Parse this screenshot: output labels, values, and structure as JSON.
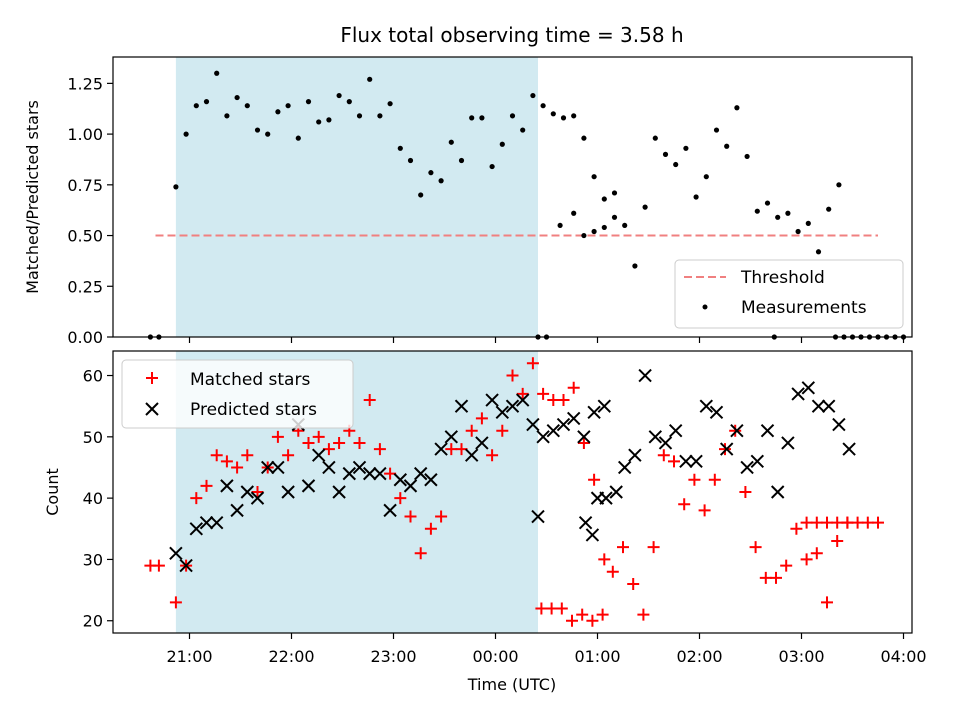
{
  "figure_title": "Flux total observing time = 3.58 h",
  "shaded_region": {
    "start": "20:52",
    "end": "00:25",
    "color": "#add8e6"
  },
  "x_axis": {
    "label": "Time (UTC)",
    "range": [
      "20:15",
      "04:05"
    ],
    "tick_labels": [
      "21:00",
      "22:00",
      "23:00",
      "00:00",
      "01:00",
      "02:00",
      "03:00",
      "04:00"
    ]
  },
  "chart_data": [
    {
      "type": "scatter",
      "ylabel": "Matched/Predicted stars",
      "ylim": [
        0,
        1.38
      ],
      "yticks": [
        "0.00",
        "0.25",
        "0.50",
        "0.75",
        "1.00",
        "1.25"
      ],
      "legend_position": "lower right",
      "threshold": {
        "name": "Threshold",
        "value": 0.5,
        "x_range": [
          "20:40",
          "03:45"
        ],
        "color": "#f08080",
        "style": "dashed"
      },
      "series": [
        {
          "name": "Measurements",
          "color": "#000000",
          "marker": "dot",
          "points": [
            [
              "20:37",
              0
            ],
            [
              "20:42",
              0
            ],
            [
              "20:52",
              0.74
            ],
            [
              "20:58",
              1.0
            ],
            [
              "21:04",
              1.14
            ],
            [
              "21:10",
              1.16
            ],
            [
              "21:16",
              1.3
            ],
            [
              "21:22",
              1.09
            ],
            [
              "21:28",
              1.18
            ],
            [
              "21:34",
              1.14
            ],
            [
              "21:40",
              1.02
            ],
            [
              "21:46",
              1.0
            ],
            [
              "21:52",
              1.11
            ],
            [
              "21:58",
              1.14
            ],
            [
              "22:04",
              0.98
            ],
            [
              "22:10",
              1.16
            ],
            [
              "22:16",
              1.06
            ],
            [
              "22:22",
              1.07
            ],
            [
              "22:28",
              1.19
            ],
            [
              "22:34",
              1.16
            ],
            [
              "22:40",
              1.09
            ],
            [
              "22:46",
              1.27
            ],
            [
              "22:52",
              1.09
            ],
            [
              "22:58",
              1.15
            ],
            [
              "23:04",
              0.93
            ],
            [
              "23:10",
              0.87
            ],
            [
              "23:16",
              0.7
            ],
            [
              "23:22",
              0.81
            ],
            [
              "23:28",
              0.77
            ],
            [
              "23:34",
              0.96
            ],
            [
              "23:40",
              0.87
            ],
            [
              "23:46",
              1.08
            ],
            [
              "23:52",
              1.08
            ],
            [
              "23:58",
              0.84
            ],
            [
              "00:04",
              0.95
            ],
            [
              "00:10",
              1.09
            ],
            [
              "00:16",
              1.02
            ],
            [
              "00:22",
              1.19
            ],
            [
              "00:28",
              1.14
            ],
            [
              "00:34",
              1.1
            ],
            [
              "00:40",
              1.08
            ],
            [
              "00:46",
              1.09
            ],
            [
              "00:52",
              0.98
            ],
            [
              "00:58",
              0.79
            ],
            [
              "01:04",
              0.54
            ],
            [
              "01:10",
              0.59
            ],
            [
              "00:25",
              0
            ],
            [
              "00:30",
              0
            ],
            [
              "00:38",
              0.55
            ],
            [
              "00:46",
              0.61
            ],
            [
              "00:52",
              0.5
            ],
            [
              "00:58",
              0.52
            ],
            [
              "01:04",
              0.68
            ],
            [
              "01:10",
              0.71
            ],
            [
              "01:16",
              0.55
            ],
            [
              "01:22",
              0.35
            ],
            [
              "01:28",
              0.64
            ],
            [
              "01:34",
              0.98
            ],
            [
              "01:40",
              0.9
            ],
            [
              "01:46",
              0.85
            ],
            [
              "01:52",
              0.93
            ],
            [
              "01:58",
              0.69
            ],
            [
              "02:04",
              0.79
            ],
            [
              "02:10",
              1.02
            ],
            [
              "02:16",
              0.94
            ],
            [
              "02:22",
              1.13
            ],
            [
              "02:28",
              0.89
            ],
            [
              "02:34",
              0.62
            ],
            [
              "02:40",
              0.66
            ],
            [
              "02:44",
              0.0
            ],
            [
              "02:46",
              0.59
            ],
            [
              "02:52",
              0.61
            ],
            [
              "02:58",
              0.52
            ],
            [
              "03:04",
              0.56
            ],
            [
              "03:10",
              0.42
            ],
            [
              "03:16",
              0.63
            ],
            [
              "03:22",
              0.75
            ],
            [
              "03:25",
              0
            ],
            [
              "03:30",
              0
            ],
            [
              "03:35",
              0
            ],
            [
              "03:40",
              0
            ],
            [
              "03:45",
              0
            ],
            [
              "03:50",
              0
            ],
            [
              "03:55",
              0
            ],
            [
              "04:00",
              0
            ],
            [
              "03:20",
              0
            ]
          ]
        }
      ]
    },
    {
      "type": "scatter",
      "ylabel": "Count",
      "ylim": [
        18,
        64
      ],
      "yticks": [
        "20",
        "30",
        "40",
        "50",
        "60"
      ],
      "legend_position": "upper left",
      "series": [
        {
          "name": "Matched stars",
          "color": "#ff0000",
          "marker": "plus",
          "points": [
            [
              "20:37",
              29
            ],
            [
              "20:42",
              29
            ],
            [
              "20:52",
              23
            ],
            [
              "20:58",
              29
            ],
            [
              "21:04",
              40
            ],
            [
              "21:10",
              42
            ],
            [
              "21:16",
              47
            ],
            [
              "21:22",
              46
            ],
            [
              "21:28",
              45
            ],
            [
              "21:34",
              47
            ],
            [
              "21:40",
              41
            ],
            [
              "21:46",
              45
            ],
            [
              "21:52",
              50
            ],
            [
              "21:58",
              47
            ],
            [
              "22:04",
              51
            ],
            [
              "22:10",
              49
            ],
            [
              "22:16",
              50
            ],
            [
              "22:22",
              48
            ],
            [
              "22:28",
              49
            ],
            [
              "22:34",
              51
            ],
            [
              "22:40",
              49
            ],
            [
              "22:46",
              56
            ],
            [
              "22:52",
              48
            ],
            [
              "22:58",
              44
            ],
            [
              "23:04",
              40
            ],
            [
              "23:10",
              37
            ],
            [
              "23:16",
              31
            ],
            [
              "23:22",
              35
            ],
            [
              "23:28",
              37
            ],
            [
              "23:34",
              48
            ],
            [
              "23:40",
              48
            ],
            [
              "23:46",
              51
            ],
            [
              "23:52",
              53
            ],
            [
              "23:58",
              47
            ],
            [
              "00:04",
              51
            ],
            [
              "00:10",
              60
            ],
            [
              "00:16",
              57
            ],
            [
              "00:22",
              62
            ],
            [
              "00:28",
              57
            ],
            [
              "00:34",
              56
            ],
            [
              "00:40",
              56
            ],
            [
              "00:46",
              58
            ],
            [
              "00:52",
              49
            ],
            [
              "00:58",
              43
            ],
            [
              "01:04",
              30
            ],
            [
              "00:27",
              22
            ],
            [
              "00:33",
              22
            ],
            [
              "00:39",
              22
            ],
            [
              "00:45",
              20
            ],
            [
              "00:51",
              21
            ],
            [
              "00:57",
              20
            ],
            [
              "01:03",
              21
            ],
            [
              "01:09",
              28
            ],
            [
              "01:15",
              32
            ],
            [
              "01:21",
              26
            ],
            [
              "01:27",
              21
            ],
            [
              "01:33",
              32
            ],
            [
              "01:39",
              47
            ],
            [
              "01:45",
              46
            ],
            [
              "01:51",
              39
            ],
            [
              "01:57",
              43
            ],
            [
              "02:03",
              38
            ],
            [
              "02:09",
              43
            ],
            [
              "02:15",
              48
            ],
            [
              "02:21",
              51
            ],
            [
              "02:27",
              41
            ],
            [
              "02:33",
              32
            ],
            [
              "02:39",
              27
            ],
            [
              "02:45",
              27
            ],
            [
              "02:51",
              29
            ],
            [
              "02:57",
              35
            ],
            [
              "03:03",
              30
            ],
            [
              "03:09",
              31
            ],
            [
              "03:15",
              23
            ],
            [
              "03:21",
              33
            ],
            [
              "03:27",
              36
            ],
            [
              "03:03",
              36
            ],
            [
              "03:09",
              36
            ],
            [
              "03:15",
              36
            ],
            [
              "03:21",
              36
            ],
            [
              "03:27",
              36
            ],
            [
              "03:33",
              36
            ],
            [
              "03:39",
              36
            ],
            [
              "03:45",
              36
            ]
          ]
        },
        {
          "name": "Predicted stars",
          "color": "#000000",
          "marker": "x",
          "points": [
            [
              "20:52",
              31
            ],
            [
              "20:58",
              29
            ],
            [
              "21:04",
              35
            ],
            [
              "21:10",
              36
            ],
            [
              "21:16",
              36
            ],
            [
              "21:22",
              42
            ],
            [
              "21:28",
              38
            ],
            [
              "21:34",
              41
            ],
            [
              "21:40",
              40
            ],
            [
              "21:46",
              45
            ],
            [
              "21:52",
              45
            ],
            [
              "21:58",
              41
            ],
            [
              "22:04",
              52
            ],
            [
              "22:10",
              42
            ],
            [
              "22:16",
              47
            ],
            [
              "22:22",
              45
            ],
            [
              "22:28",
              41
            ],
            [
              "22:34",
              44
            ],
            [
              "22:40",
              45
            ],
            [
              "22:46",
              44
            ],
            [
              "22:52",
              44
            ],
            [
              "22:58",
              38
            ],
            [
              "23:04",
              43
            ],
            [
              "23:10",
              42
            ],
            [
              "23:16",
              44
            ],
            [
              "23:22",
              43
            ],
            [
              "23:28",
              48
            ],
            [
              "23:34",
              50
            ],
            [
              "23:40",
              55
            ],
            [
              "23:46",
              47
            ],
            [
              "23:52",
              49
            ],
            [
              "23:58",
              56
            ],
            [
              "00:04",
              54
            ],
            [
              "00:10",
              55
            ],
            [
              "00:16",
              56
            ],
            [
              "00:22",
              52
            ],
            [
              "00:28",
              50
            ],
            [
              "00:34",
              51
            ],
            [
              "00:40",
              52
            ],
            [
              "00:46",
              53
            ],
            [
              "00:52",
              50
            ],
            [
              "00:58",
              54
            ],
            [
              "01:04",
              55
            ],
            [
              "00:25",
              37
            ],
            [
              "00:53",
              36
            ],
            [
              "00:57",
              34
            ],
            [
              "01:00",
              40
            ],
            [
              "01:05",
              40
            ],
            [
              "01:11",
              41
            ],
            [
              "01:16",
              45
            ],
            [
              "01:22",
              47
            ],
            [
              "01:28",
              60
            ],
            [
              "01:34",
              50
            ],
            [
              "01:40",
              49
            ],
            [
              "01:46",
              51
            ],
            [
              "01:52",
              46
            ],
            [
              "01:58",
              46
            ],
            [
              "02:04",
              55
            ],
            [
              "02:10",
              54
            ],
            [
              "02:16",
              48
            ],
            [
              "02:22",
              51
            ],
            [
              "02:28",
              45
            ],
            [
              "02:34",
              46
            ],
            [
              "02:40",
              51
            ],
            [
              "02:46",
              41
            ],
            [
              "02:52",
              49
            ],
            [
              "02:58",
              57
            ],
            [
              "03:04",
              58
            ],
            [
              "03:10",
              55
            ],
            [
              "03:16",
              55
            ],
            [
              "03:22",
              52
            ],
            [
              "03:28",
              48
            ]
          ]
        }
      ]
    }
  ]
}
